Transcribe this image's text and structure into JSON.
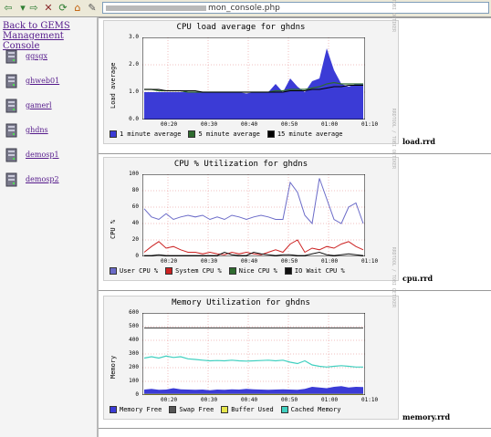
{
  "browser": {
    "url_visible": "mon_console.php"
  },
  "sidebar": {
    "back_link": "Back to GEMS Management Console",
    "hosts": [
      "ggsgx",
      "ghweb01",
      "gamerl",
      "ghdns",
      "demosp1",
      "demosp2"
    ]
  },
  "graphs": [
    {
      "title": "CPU load average for ghdns",
      "ylabel": "Load average",
      "vendor": "RRDTOOL / TOBI OETIKER",
      "yticks": [
        "3.0",
        "2.0",
        "1.0",
        "0.0"
      ],
      "xticks": [
        "00:20",
        "00:30",
        "00:40",
        "00:50",
        "01:00",
        "01:10"
      ],
      "legend": [
        {
          "label": "1 minute average",
          "color": "#3b3bd6"
        },
        {
          "label": "5 minute average",
          "color": "#2e6b2e"
        },
        {
          "label": "15 minute average",
          "color": "#000000"
        }
      ],
      "rrd": "load.rrd"
    },
    {
      "title": "CPU % Utilization for ghdns",
      "ylabel": "CPU %",
      "vendor": "RRDTOOL / TOBI OETIKER",
      "yticks": [
        "100",
        "80",
        "60",
        "40",
        "20",
        "0"
      ],
      "xticks": [
        "00:20",
        "00:30",
        "00:40",
        "00:50",
        "01:00",
        "01:10"
      ],
      "legend": [
        {
          "label": "User CPU %",
          "color": "#6b6bc8"
        },
        {
          "label": "System CPU %",
          "color": "#cc2222"
        },
        {
          "label": "Nice CPU %",
          "color": "#2e6b2e"
        },
        {
          "label": "IO Wait CPU %",
          "color": "#111111"
        }
      ],
      "rrd": "cpu.rrd"
    },
    {
      "title": "Memory Utilization for ghdns",
      "ylabel": "Memory",
      "vendor": "RRDTOOL / TOBI OETIKER",
      "yticks": [
        "600",
        "500",
        "400",
        "300",
        "200",
        "100",
        "0"
      ],
      "xticks": [
        "00:20",
        "00:30",
        "00:40",
        "00:50",
        "01:00",
        "01:10"
      ],
      "legend": [
        {
          "label": "Memory Free",
          "color": "#3b3bd6"
        },
        {
          "label": "Swap Free",
          "color": "#555555"
        },
        {
          "label": "Buffer Used",
          "color": "#e6e64c"
        },
        {
          "label": "Cached Memory",
          "color": "#40d0c0"
        }
      ],
      "rrd": "memory.rrd"
    }
  ],
  "chart_data": [
    {
      "type": "area",
      "title": "CPU load average for ghdns",
      "ylabel": "Load average",
      "ylim": [
        0,
        3.0
      ],
      "x": [
        "00:15",
        "00:17",
        "00:19",
        "00:21",
        "00:23",
        "00:25",
        "00:27",
        "00:29",
        "00:31",
        "00:33",
        "00:35",
        "00:37",
        "00:39",
        "00:41",
        "00:43",
        "00:45",
        "00:47",
        "00:49",
        "00:51",
        "00:53",
        "00:55",
        "00:57",
        "00:59",
        "01:01",
        "01:03",
        "01:05",
        "01:07",
        "01:09",
        "01:11",
        "01:13",
        "01:15"
      ],
      "series": [
        {
          "name": "1 minute average",
          "values": [
            1.0,
            1.0,
            1.0,
            1.0,
            1.0,
            1.0,
            1.0,
            1.0,
            1.0,
            1.0,
            1.0,
            1.0,
            1.0,
            1.0,
            0.95,
            1.0,
            1.0,
            1.0,
            1.3,
            1.0,
            1.5,
            1.2,
            1.0,
            1.4,
            1.5,
            2.6,
            1.8,
            1.3,
            1.2,
            1.3,
            1.3
          ]
        },
        {
          "name": "5 minute average",
          "values": [
            1.1,
            1.1,
            1.05,
            1.05,
            1.05,
            1.05,
            1.0,
            1.0,
            1.0,
            1.0,
            1.0,
            1.0,
            1.0,
            1.0,
            1.0,
            1.0,
            1.0,
            1.0,
            1.05,
            1.05,
            1.1,
            1.1,
            1.1,
            1.15,
            1.2,
            1.3,
            1.35,
            1.3,
            1.3,
            1.3,
            1.3
          ]
        },
        {
          "name": "15 minute average",
          "values": [
            1.1,
            1.1,
            1.1,
            1.05,
            1.05,
            1.05,
            1.05,
            1.05,
            1.0,
            1.0,
            1.0,
            1.0,
            1.0,
            1.0,
            1.0,
            1.0,
            1.0,
            1.0,
            1.0,
            1.0,
            1.05,
            1.05,
            1.05,
            1.1,
            1.1,
            1.15,
            1.2,
            1.2,
            1.25,
            1.25,
            1.25
          ]
        }
      ]
    },
    {
      "type": "line",
      "title": "CPU % Utilization for ghdns",
      "ylabel": "CPU %",
      "ylim": [
        0,
        100
      ],
      "x": [
        "00:15",
        "00:17",
        "00:19",
        "00:21",
        "00:23",
        "00:25",
        "00:27",
        "00:29",
        "00:31",
        "00:33",
        "00:35",
        "00:37",
        "00:39",
        "00:41",
        "00:43",
        "00:45",
        "00:47",
        "00:49",
        "00:51",
        "00:53",
        "00:55",
        "00:57",
        "00:59",
        "01:01",
        "01:03",
        "01:05",
        "01:07",
        "01:09",
        "01:11",
        "01:13",
        "01:15"
      ],
      "series": [
        {
          "name": "User CPU %",
          "values": [
            58,
            48,
            45,
            52,
            45,
            48,
            50,
            48,
            50,
            45,
            48,
            45,
            50,
            48,
            45,
            48,
            50,
            48,
            45,
            45,
            90,
            78,
            50,
            40,
            95,
            70,
            45,
            40,
            60,
            65,
            40
          ]
        },
        {
          "name": "System CPU %",
          "values": [
            5,
            12,
            18,
            10,
            12,
            8,
            5,
            5,
            3,
            5,
            3,
            2,
            5,
            3,
            5,
            3,
            2,
            5,
            8,
            5,
            15,
            20,
            5,
            10,
            8,
            12,
            10,
            15,
            18,
            12,
            8
          ]
        },
        {
          "name": "Nice CPU %",
          "values": [
            0,
            0,
            0,
            0,
            0,
            0,
            0,
            0,
            0,
            0,
            0,
            0,
            0,
            0,
            0,
            0,
            0,
            0,
            0,
            0,
            0,
            0,
            0,
            0,
            0,
            0,
            0,
            0,
            0,
            0,
            0
          ]
        },
        {
          "name": "IO Wait CPU %",
          "values": [
            1,
            1,
            2,
            1,
            1,
            1,
            1,
            1,
            1,
            1,
            1,
            5,
            2,
            1,
            1,
            5,
            3,
            2,
            1,
            2,
            2,
            1,
            1,
            3,
            5,
            2,
            1,
            2,
            3,
            2,
            1
          ]
        }
      ]
    },
    {
      "type": "area",
      "title": "Memory Utilization for ghdns",
      "ylabel": "Memory",
      "ylim": [
        0,
        600
      ],
      "x": [
        "00:15",
        "00:17",
        "00:19",
        "00:21",
        "00:23",
        "00:25",
        "00:27",
        "00:29",
        "00:31",
        "00:33",
        "00:35",
        "00:37",
        "00:39",
        "00:41",
        "00:43",
        "00:45",
        "00:47",
        "00:49",
        "00:51",
        "00:53",
        "00:55",
        "00:57",
        "00:59",
        "01:01",
        "01:03",
        "01:05",
        "01:07",
        "01:09",
        "01:11",
        "01:13",
        "01:15"
      ],
      "series": [
        {
          "name": "Memory Free",
          "values": [
            40,
            45,
            38,
            40,
            50,
            42,
            40,
            38,
            40,
            35,
            40,
            38,
            42,
            40,
            45,
            42,
            40,
            38,
            40,
            42,
            40,
            38,
            45,
            60,
            55,
            50,
            60,
            65,
            55,
            60,
            58
          ]
        },
        {
          "name": "Swap Free",
          "values": [
            490,
            490,
            490,
            490,
            490,
            490,
            490,
            490,
            490,
            490,
            490,
            490,
            490,
            490,
            490,
            490,
            490,
            490,
            490,
            490,
            490,
            490,
            490,
            490,
            490,
            490,
            490,
            490,
            490,
            490,
            490
          ]
        },
        {
          "name": "Buffer Used",
          "values": [
            5,
            5,
            5,
            5,
            5,
            5,
            5,
            5,
            5,
            5,
            5,
            5,
            5,
            5,
            5,
            5,
            5,
            5,
            5,
            5,
            5,
            5,
            5,
            5,
            5,
            5,
            5,
            5,
            5,
            5,
            5
          ]
        },
        {
          "name": "Cached Memory",
          "values": [
            270,
            280,
            270,
            285,
            275,
            280,
            265,
            260,
            255,
            250,
            252,
            250,
            255,
            250,
            248,
            250,
            252,
            255,
            250,
            255,
            240,
            230,
            250,
            220,
            210,
            205,
            210,
            215,
            210,
            205,
            205
          ]
        }
      ]
    }
  ]
}
